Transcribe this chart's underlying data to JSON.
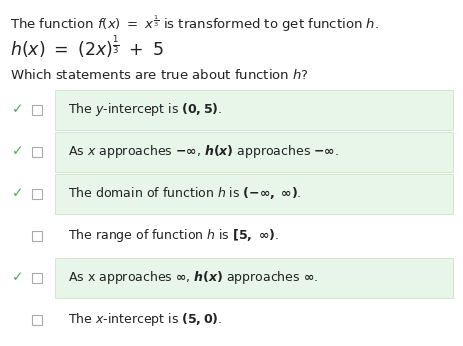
{
  "background_color": "#ffffff",
  "text_color": "#222222",
  "check_color": "#4caf50",
  "highlight_color": "#e8f5e9",
  "highlight_border": "#c8e6c9",
  "font_size_body": 9.5,
  "font_size_formula": 12.5,
  "font_size_question": 9.5,
  "font_size_statements": 9.0,
  "statements": [
    {
      "text": "The $y$-intercept is $\\mathbf{(0, 5)}$.",
      "checked": true,
      "highlighted": true
    },
    {
      "text": "As $x$ approaches $\\mathbf{-\\infty}$, $\\boldsymbol{h(x)}$ approaches $\\mathbf{-\\infty}$.",
      "checked": true,
      "highlighted": true
    },
    {
      "text": "The domain of function $h$ is $\\mathbf{(-\\infty,\\ \\infty)}$.",
      "checked": true,
      "highlighted": true
    },
    {
      "text": "The range of function $h$ is $\\mathbf{[5,\\ \\infty)}$.",
      "checked": false,
      "highlighted": false
    },
    {
      "text": "As x approaches $\\boldsymbol{\\infty}$, $\\boldsymbol{h(x)}$ approaches $\\boldsymbol{\\infty}$.",
      "checked": true,
      "highlighted": true
    },
    {
      "text": "The $x$-intercept is $\\mathbf{(5, 0)}$.",
      "checked": false,
      "highlighted": false
    }
  ]
}
